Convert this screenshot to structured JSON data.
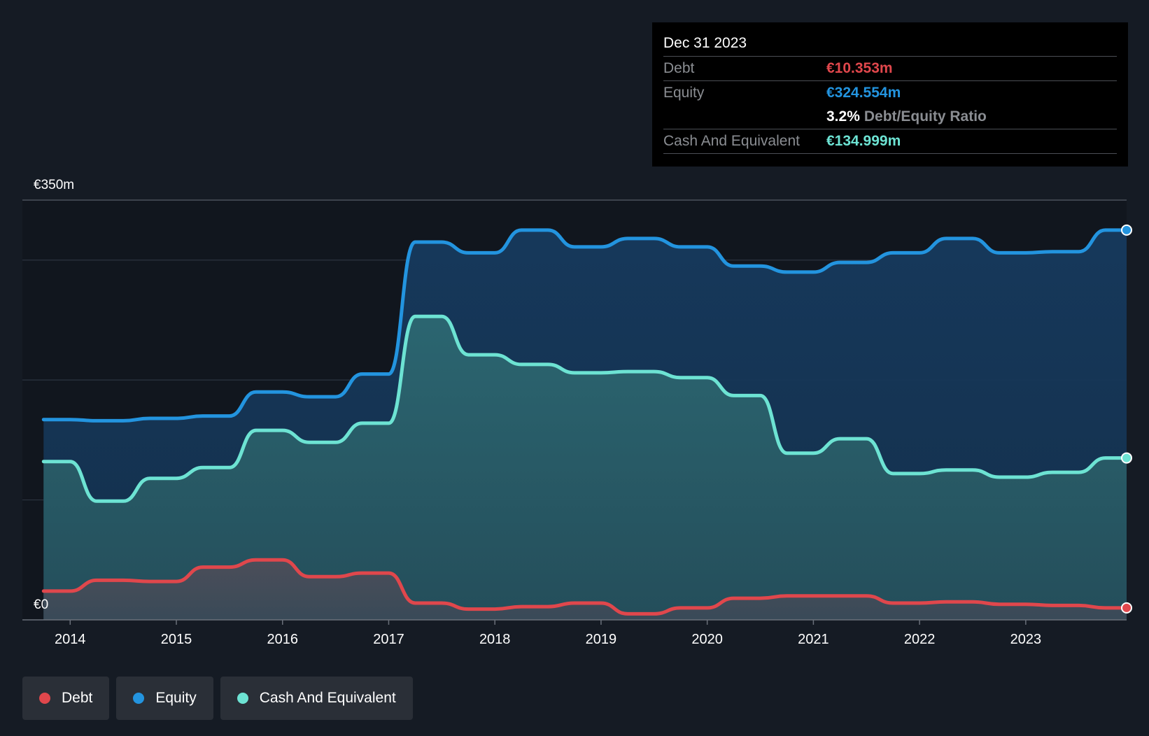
{
  "tooltip": {
    "date": "Dec 31 2023",
    "debt_label": "Debt",
    "debt_value": "€10.353m",
    "equity_label": "Equity",
    "equity_value": "€324.554m",
    "ratio_value": "3.2%",
    "ratio_label": "Debt/Equity Ratio",
    "cash_label": "Cash And Equivalent",
    "cash_value": "€134.999m"
  },
  "legend": [
    {
      "label": "Debt",
      "color": "#e0474c"
    },
    {
      "label": "Equity",
      "color": "#2394df"
    },
    {
      "label": "Cash And Equivalent",
      "color": "#6de3d3"
    }
  ],
  "chart_data": {
    "type": "area",
    "y_top_label": "€350m",
    "y_bottom_label": "€0",
    "ylim": [
      0,
      350
    ],
    "xlim": [
      2013.55,
      2023.95
    ],
    "x_tick_labels": [
      "2014",
      "2015",
      "2016",
      "2017",
      "2018",
      "2019",
      "2020",
      "2021",
      "2022",
      "2023"
    ],
    "x_ticks": [
      2014,
      2015,
      2016,
      2017,
      2018,
      2019,
      2020,
      2021,
      2022,
      2023
    ],
    "grid_values": [
      100,
      200,
      300
    ],
    "grid": true,
    "legend_position": "bottom-left",
    "colors": {
      "debt": "#e0474c",
      "equity": "#2394df",
      "cash": "#6de3d3"
    },
    "x": [
      2013.75,
      2014.0,
      2014.25,
      2014.5,
      2014.75,
      2015.0,
      2015.25,
      2015.5,
      2015.75,
      2016.0,
      2016.25,
      2016.5,
      2016.75,
      2017.0,
      2017.25,
      2017.5,
      2017.75,
      2018.0,
      2018.25,
      2018.5,
      2018.75,
      2019.0,
      2019.25,
      2019.5,
      2019.75,
      2020.0,
      2020.25,
      2020.5,
      2020.75,
      2021.0,
      2021.25,
      2021.5,
      2021.75,
      2022.0,
      2022.25,
      2022.5,
      2022.75,
      2023.0,
      2023.25,
      2023.5,
      2023.75,
      2023.95
    ],
    "series": [
      {
        "name": "Debt",
        "key": "debt",
        "values": [
          24,
          24,
          33,
          33,
          32,
          32,
          44,
          44,
          50,
          50,
          36,
          36,
          39,
          39,
          14,
          14,
          9,
          9,
          11,
          11,
          14,
          14,
          5,
          5,
          10,
          10,
          18,
          18,
          20,
          20,
          20,
          20,
          14,
          14,
          15,
          15,
          13,
          13,
          12,
          12,
          10,
          10
        ]
      },
      {
        "name": "Equity",
        "key": "equity",
        "values": [
          167,
          167,
          166,
          166,
          168,
          168,
          170,
          170,
          190,
          190,
          186,
          186,
          205,
          205,
          315,
          315,
          306,
          306,
          325,
          325,
          311,
          311,
          318,
          318,
          311,
          311,
          295,
          295,
          290,
          290,
          298,
          298,
          306,
          306,
          318,
          318,
          306,
          306,
          307,
          307,
          325,
          325
        ]
      },
      {
        "name": "Cash And Equivalent",
        "key": "cash",
        "values": [
          132,
          132,
          99,
          99,
          118,
          118,
          127,
          127,
          158,
          158,
          148,
          148,
          164,
          164,
          253,
          253,
          221,
          221,
          213,
          213,
          206,
          206,
          207,
          207,
          202,
          202,
          187,
          187,
          139,
          139,
          151,
          151,
          122,
          122,
          125,
          125,
          119,
          119,
          123,
          123,
          135,
          135
        ]
      }
    ]
  }
}
